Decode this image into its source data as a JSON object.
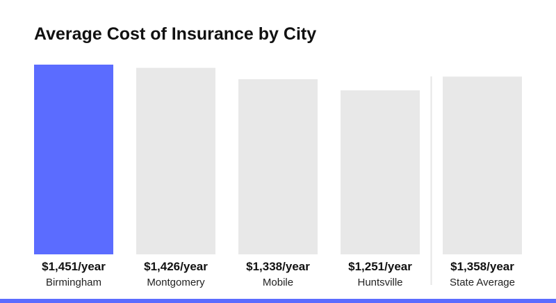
{
  "colors": {
    "highlight": "#5b6cff",
    "bar": "#e8e8e8",
    "divider": "#e6e6e6",
    "accent_strip": "#5b6cff",
    "text": "#111111"
  },
  "chart_data": {
    "type": "bar",
    "title": "Average Cost of Insurance by City",
    "xlabel": "",
    "ylabel": "",
    "categories": [
      "Birmingham",
      "Montgomery",
      "Mobile",
      "Huntsville",
      "State Average"
    ],
    "values": [
      1451,
      1426,
      1338,
      1251,
      1358
    ],
    "value_labels": [
      "$1,451/year",
      "$1,426/year",
      "$1,338/year",
      "$1,251/year",
      "$1,358/year"
    ],
    "highlighted_category": "Birmingham",
    "separated_category": "State Average",
    "grid": false,
    "legend": "none"
  }
}
